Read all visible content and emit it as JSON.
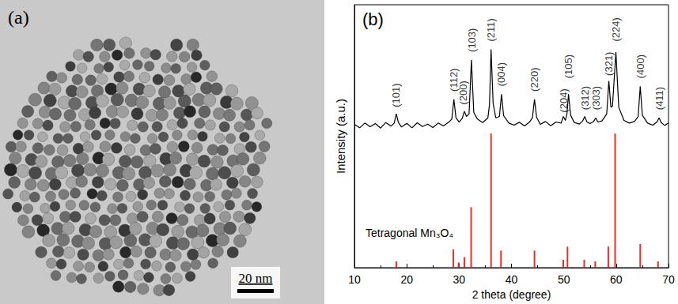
{
  "image_panel": {
    "title": "(a)",
    "scale_bar": "20 nm"
  },
  "chart_data": {
    "type": "line",
    "title": "(b)",
    "x_label": "2 theta (degree)",
    "y_label": "Intensity (a.u.)",
    "xlim": [
      10,
      70
    ],
    "xticks": [
      10,
      20,
      30,
      40,
      50,
      60,
      70
    ],
    "ylim": [
      0,
      100
    ],
    "tick_labels": "x",
    "grid": false,
    "series": [
      {
        "type": "line",
        "color": "#000000",
        "x": [
          10,
          11,
          12,
          13,
          14,
          15,
          16,
          17,
          17.6,
          18.0,
          18.4,
          19,
          20,
          21,
          22,
          23,
          24,
          25,
          26,
          27,
          28,
          28.6,
          29.0,
          29.4,
          30,
          30.6,
          31.0,
          31.4,
          31.9,
          32.35,
          32.8,
          33.5,
          34.5,
          35.5,
          35.8,
          36.1,
          36.5,
          37.0,
          37.7,
          38.1,
          38.5,
          39.5,
          40.5,
          41.5,
          42.5,
          43.5,
          44.0,
          44.4,
          44.8,
          45.5,
          46.5,
          47.5,
          48.5,
          49.5,
          49.9,
          50.3,
          50.6,
          50.9,
          51.3,
          52,
          53,
          53.6,
          54.0,
          54.4,
          55,
          55.7,
          56.1,
          56.5,
          57.3,
          58.2,
          58.6,
          59.0,
          59.3,
          59.95,
          60.5,
          61.5,
          62.5,
          63.5,
          64.2,
          64.6,
          65.0,
          66,
          67,
          67.8,
          68.2,
          68.6,
          69.3,
          70
        ],
        "values": [
          54.5,
          53.2,
          55.0,
          53.6,
          54.8,
          53.1,
          55.2,
          53.8,
          55.0,
          58.5,
          55.2,
          53.5,
          54.9,
          53.2,
          55.1,
          53.7,
          54.6,
          53.3,
          55.0,
          53.9,
          55.3,
          56.5,
          64.0,
          57.0,
          55.4,
          56.8,
          59.5,
          57.5,
          58.5,
          79.0,
          59.0,
          56.5,
          55.2,
          57.0,
          62.0,
          83.0,
          62.5,
          57.0,
          57.5,
          66.0,
          57.8,
          55.0,
          54.2,
          55.3,
          53.9,
          55.5,
          57.0,
          64.0,
          57.2,
          54.5,
          55.6,
          54.0,
          55.4,
          55.0,
          57.5,
          56.0,
          58.5,
          66.0,
          58.0,
          55.2,
          54.6,
          55.8,
          57.5,
          55.5,
          54.8,
          55.6,
          57.0,
          55.4,
          55.8,
          58.5,
          71.0,
          61.0,
          61.5,
          82.0,
          61.0,
          56.0,
          55.0,
          55.6,
          57.5,
          69.0,
          58.0,
          55.0,
          54.2,
          55.4,
          57.0,
          55.2,
          54.1,
          55.0
        ]
      },
      {
        "type": "bar",
        "name": "Tetragonal Mn₃O₄",
        "color": "#e8302c",
        "x": [
          18.0,
          28.9,
          29.9,
          31.0,
          32.3,
          36.1,
          38.0,
          44.4,
          49.9,
          50.7,
          53.9,
          56.0,
          58.5,
          59.8,
          64.6,
          68.0
        ],
        "values": [
          2.4,
          7,
          2,
          4,
          23,
          51,
          6.5,
          6.5,
          3,
          8,
          3,
          2.4,
          8,
          51,
          9,
          2.4
        ]
      }
    ],
    "annotations": [
      {
        "text": "(101)",
        "x": 18.0,
        "y": 61
      },
      {
        "text": "(112)",
        "x": 29.0,
        "y": 67
      },
      {
        "text": "(200)",
        "x": 30.8,
        "y": 62
      },
      {
        "text": "(103)",
        "x": 32.4,
        "y": 82
      },
      {
        "text": "(211)",
        "x": 36.1,
        "y": 86
      },
      {
        "text": "(004)",
        "x": 38.1,
        "y": 69
      },
      {
        "text": "(220)",
        "x": 44.4,
        "y": 67
      },
      {
        "text": "(204)",
        "x": 49.9,
        "y": 59
      },
      {
        "text": "(105)",
        "x": 50.9,
        "y": 72
      },
      {
        "text": "(312)",
        "x": 54.0,
        "y": 60
      },
      {
        "text": "(303)",
        "x": 56.1,
        "y": 60
      },
      {
        "text": "(321)",
        "x": 58.6,
        "y": 73
      },
      {
        "text": "(224)",
        "x": 60.0,
        "y": 86
      },
      {
        "text": "(400)",
        "x": 64.6,
        "y": 72
      },
      {
        "text": "(411)",
        "x": 68.2,
        "y": 60
      }
    ]
  }
}
